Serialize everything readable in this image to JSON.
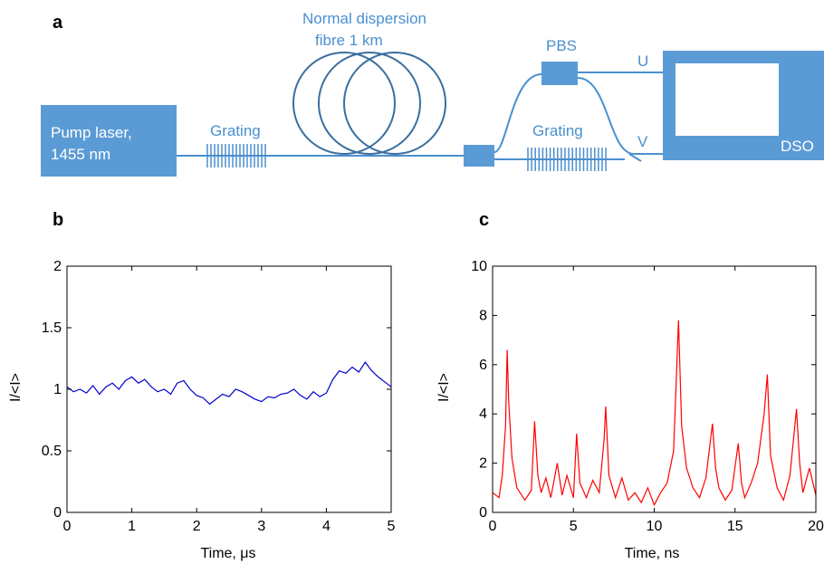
{
  "panels": {
    "a": "a",
    "b": "b",
    "c": "c"
  },
  "schematic": {
    "fibre_label_line1": "Normal dispersion",
    "fibre_label_line2": "fibre 1 km",
    "pump_line1": "Pump laser,",
    "pump_line2": "1455 nm",
    "grating1": "Grating",
    "grating2": "Grating",
    "pbs": "PBS",
    "port_u": "U",
    "port_v": "V",
    "dso": "DSO",
    "color": "#5b9bd5",
    "line_color": "#4a8fcf"
  },
  "chart_data": [
    {
      "type": "line",
      "xlabel": "Time, μs",
      "ylabel": "I/<I>",
      "xlim": [
        0,
        5
      ],
      "ylim": [
        0,
        2
      ],
      "xticks": [
        "0",
        "1",
        "2",
        "3",
        "4",
        "5"
      ],
      "yticks": [
        "0",
        "0.5",
        "1",
        "1.5",
        "2"
      ],
      "color": "#0000cc",
      "series": [
        {
          "x": [
            0,
            0.1,
            0.2,
            0.3,
            0.4,
            0.5,
            0.6,
            0.7,
            0.8,
            0.9,
            1.0,
            1.1,
            1.2,
            1.3,
            1.4,
            1.5,
            1.6,
            1.7,
            1.8,
            1.9,
            2.0,
            2.1,
            2.2,
            2.3,
            2.4,
            2.5,
            2.6,
            2.7,
            2.8,
            2.9,
            3.0,
            3.1,
            3.2,
            3.3,
            3.4,
            3.5,
            3.6,
            3.7,
            3.8,
            3.9,
            4.0,
            4.1,
            4.2,
            4.3,
            4.4,
            4.5,
            4.6,
            4.7,
            4.8,
            4.9,
            5.0
          ],
          "y": [
            1.02,
            0.98,
            1.0,
            0.97,
            1.03,
            0.96,
            1.02,
            1.05,
            1.0,
            1.07,
            1.1,
            1.05,
            1.08,
            1.02,
            0.98,
            1.0,
            0.96,
            1.05,
            1.07,
            1.0,
            0.95,
            0.93,
            0.88,
            0.92,
            0.96,
            0.94,
            1.0,
            0.98,
            0.95,
            0.92,
            0.9,
            0.94,
            0.93,
            0.96,
            0.97,
            1.0,
            0.95,
            0.92,
            0.98,
            0.94,
            0.97,
            1.08,
            1.15,
            1.13,
            1.18,
            1.14,
            1.22,
            1.15,
            1.1,
            1.06,
            1.02
          ]
        }
      ]
    },
    {
      "type": "line",
      "xlabel": "Time, ns",
      "ylabel": "I/<I>",
      "xlim": [
        0,
        20
      ],
      "ylim": [
        0,
        10
      ],
      "xticks": [
        "0",
        "5",
        "10",
        "15",
        "20"
      ],
      "yticks": [
        "0",
        "2",
        "4",
        "6",
        "8",
        "10"
      ],
      "color": "#ff0000",
      "series": [
        {
          "x": [
            0,
            0.4,
            0.6,
            0.8,
            0.9,
            1.0,
            1.2,
            1.5,
            2.0,
            2.4,
            2.6,
            2.8,
            3.0,
            3.3,
            3.6,
            4.0,
            4.3,
            4.6,
            5.0,
            5.2,
            5.4,
            5.8,
            6.2,
            6.6,
            6.9,
            7.0,
            7.2,
            7.6,
            8.0,
            8.4,
            8.8,
            9.2,
            9.6,
            10.0,
            10.4,
            10.8,
            11.2,
            11.4,
            11.5,
            11.7,
            12.0,
            12.4,
            12.8,
            13.2,
            13.6,
            13.8,
            14.0,
            14.4,
            14.8,
            15.2,
            15.4,
            15.6,
            16.0,
            16.4,
            16.8,
            17.0,
            17.2,
            17.6,
            18.0,
            18.4,
            18.8,
            19.0,
            19.2,
            19.6,
            20.0
          ],
          "y": [
            0.8,
            0.6,
            1.5,
            3.5,
            6.6,
            4.5,
            2.2,
            1.0,
            0.5,
            0.9,
            3.7,
            1.5,
            0.8,
            1.4,
            0.6,
            2.0,
            0.7,
            1.5,
            0.6,
            3.2,
            1.2,
            0.6,
            1.3,
            0.8,
            3.0,
            4.3,
            1.5,
            0.6,
            1.4,
            0.5,
            0.8,
            0.4,
            1.0,
            0.3,
            0.8,
            1.2,
            2.5,
            6.0,
            7.8,
            3.5,
            1.8,
            1.0,
            0.6,
            1.4,
            3.6,
            1.8,
            1.0,
            0.5,
            0.9,
            2.8,
            1.2,
            0.6,
            1.2,
            2.0,
            4.0,
            5.6,
            2.3,
            1.0,
            0.5,
            1.5,
            4.2,
            2.0,
            0.8,
            1.8,
            0.7
          ]
        }
      ]
    }
  ]
}
